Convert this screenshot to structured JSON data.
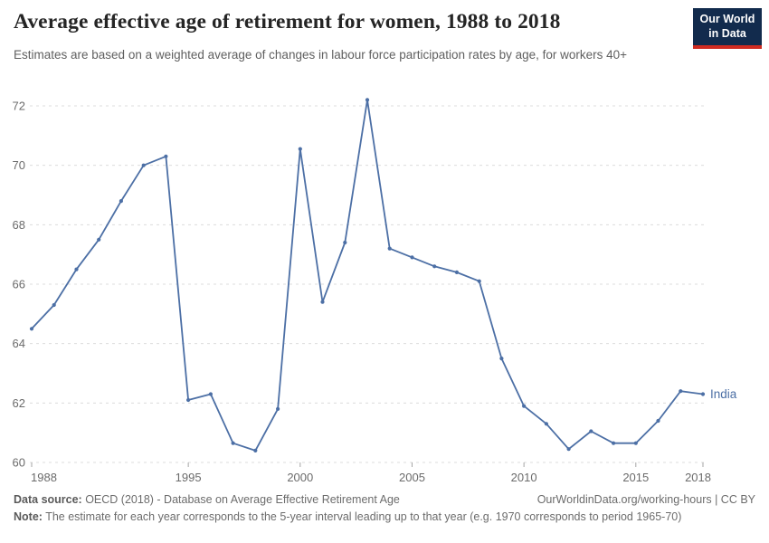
{
  "header": {
    "title": "Average effective age of retirement for women, 1988 to 2018",
    "subtitle": "Estimates are based on a weighted average of changes in labour force participation rates by age, for workers 40+",
    "logo": {
      "line1": "Our World",
      "line2": "in Data"
    }
  },
  "chart_data": {
    "type": "line",
    "title": "Average effective age of retirement for women, 1988 to 2018",
    "xlabel": "",
    "ylabel": "",
    "x": [
      1988,
      1989,
      1990,
      1991,
      1992,
      1993,
      1994,
      1995,
      1996,
      1997,
      1998,
      1999,
      2000,
      2001,
      2002,
      2003,
      2004,
      2005,
      2006,
      2007,
      2008,
      2009,
      2010,
      2011,
      2012,
      2013,
      2014,
      2015,
      2016,
      2017,
      2018
    ],
    "series": [
      {
        "name": "India",
        "color": "#4C6FA5",
        "values": [
          64.5,
          65.3,
          66.5,
          67.5,
          68.8,
          70.0,
          70.3,
          62.1,
          62.3,
          60.65,
          60.4,
          61.8,
          70.55,
          65.4,
          67.4,
          72.2,
          67.2,
          66.9,
          66.6,
          66.4,
          66.1,
          63.5,
          61.9,
          61.3,
          60.45,
          61.05,
          60.65,
          60.65,
          61.4,
          62.4,
          62.3
        ]
      }
    ],
    "x_ticks": [
      1988,
      1995,
      2000,
      2005,
      2010,
      2015,
      2018
    ],
    "y_ticks": [
      60,
      62,
      64,
      66,
      68,
      70,
      72
    ],
    "xlim": [
      1988,
      2018
    ],
    "ylim": [
      60,
      72
    ],
    "grid": "horizontal-dashed",
    "legend_position": "end-of-line",
    "end_label": "India"
  },
  "footer": {
    "datasource_label": "Data source:",
    "datasource_text": " OECD (2018) - Database on Average Effective Retirement Age",
    "link": "OurWorldinData.org/working-hours | CC BY",
    "note_label": "Note:",
    "note_text": " The estimate for each year corresponds to the 5-year interval leading up to that year (e.g. 1970 corresponds to period 1965-70)"
  },
  "colors": {
    "line": "#4C6FA5",
    "grid": "#dcdcdc",
    "tick": "#a5a5a5",
    "axis_text": "#6b6b6b",
    "logo_bg": "#122B4D",
    "logo_red": "#D02B21"
  }
}
